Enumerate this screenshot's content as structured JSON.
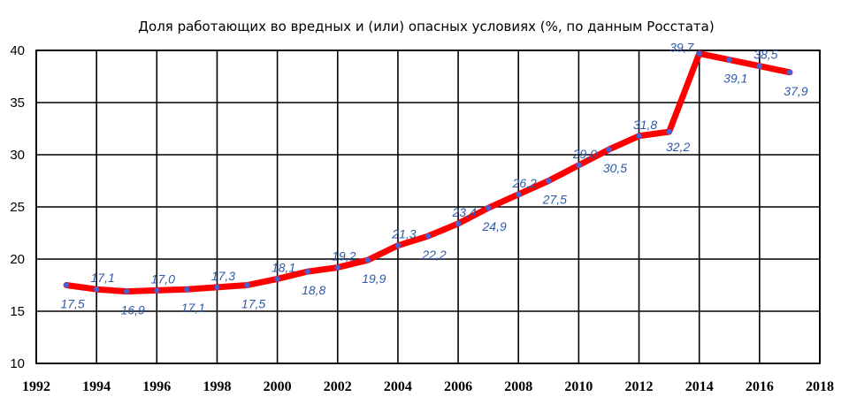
{
  "chart_data": {
    "type": "line",
    "title": "Доля работающих во вредных и (или) опасных условиях (%, по данным Росстата)",
    "x": [
      1993,
      1994,
      1995,
      1996,
      1997,
      1998,
      1999,
      2000,
      2001,
      2002,
      2003,
      2004,
      2005,
      2006,
      2007,
      2008,
      2009,
      2010,
      2011,
      2012,
      2013,
      2014,
      2015,
      2016,
      2017
    ],
    "values": [
      17.5,
      17.1,
      16.9,
      17.0,
      17.1,
      17.3,
      17.5,
      18.1,
      18.8,
      19.2,
      19.9,
      21.3,
      22.2,
      23.4,
      24.9,
      26.2,
      27.5,
      29.0,
      30.5,
      31.8,
      32.2,
      39.7,
      39.1,
      38.5,
      37.9
    ],
    "data_labels": [
      "17,5",
      "17,1",
      "16,9",
      "17,0",
      "17,1",
      "17,3",
      "17,5",
      "18,1",
      "18,8",
      "19,2",
      "19,9",
      "21,3",
      "22,2",
      "23,4",
      "24,9",
      "26,2",
      "27,5",
      "29,0",
      "30,5",
      "31,8",
      "32,2",
      "39,7",
      "39,1",
      "38,5",
      "37,9"
    ],
    "xlim": [
      1992,
      2018
    ],
    "ylim": [
      10,
      40
    ],
    "x_ticks": [
      "1992",
      "1994",
      "1996",
      "1998",
      "2000",
      "2002",
      "2004",
      "2006",
      "2008",
      "2010",
      "2012",
      "2014",
      "2016",
      "2018"
    ],
    "y_ticks": [
      "10",
      "15",
      "20",
      "25",
      "30",
      "35",
      "40"
    ],
    "grid": true,
    "legend": "none",
    "line_color": "#ff0000",
    "marker_color": "#4a5fd0",
    "label_color": "#2e5aa8",
    "grid_color": "#000000"
  }
}
